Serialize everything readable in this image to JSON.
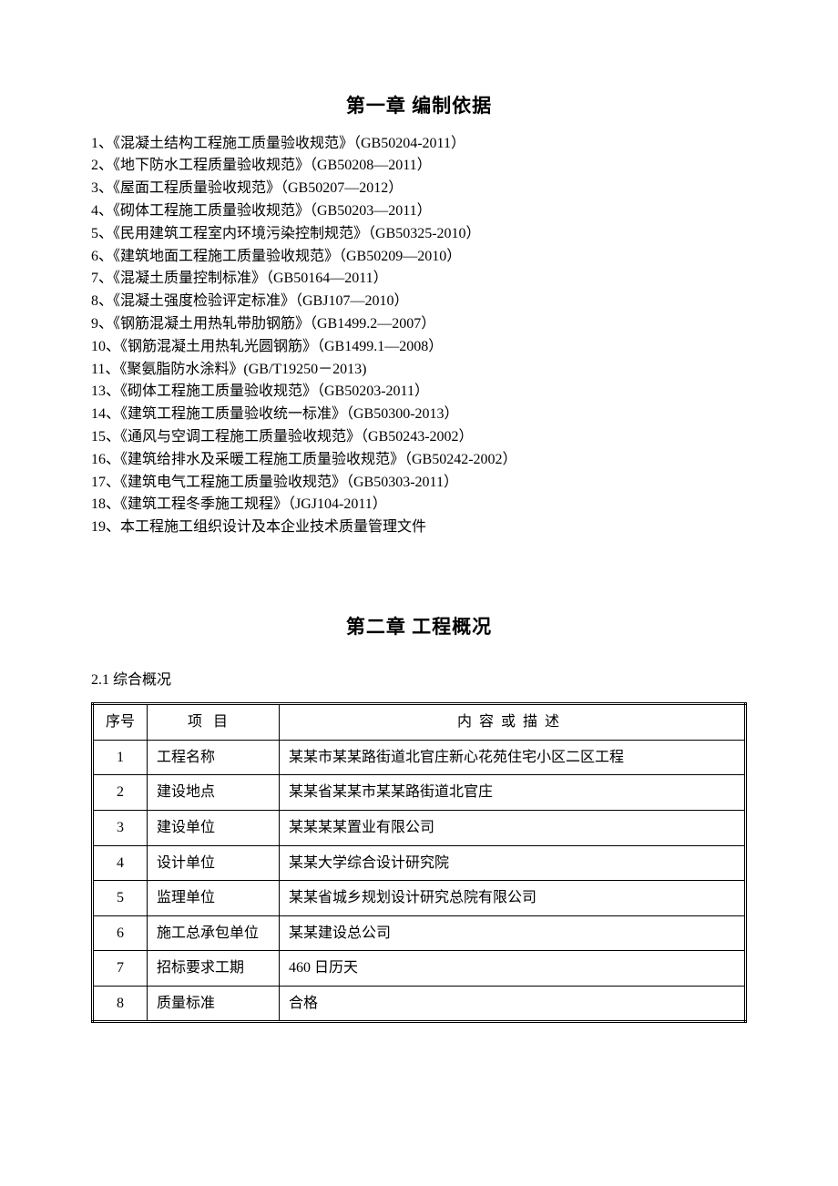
{
  "chapter1": {
    "title": "第一章 编制依据",
    "references": [
      "1、《混凝土结构工程施工质量验收规范》（GB50204-2011）",
      "2、《地下防水工程质量验收规范》（GB50208—2011）",
      "3、《屋面工程质量验收规范》（GB50207—2012）",
      "4、《砌体工程施工质量验收规范》（GB50203—2011）",
      "5、《民用建筑工程室内环境污染控制规范》（GB50325-2010）",
      "6、《建筑地面工程施工质量验收规范》（GB50209—2010）",
      "7、《混凝土质量控制标准》（GB50164—2011）",
      "8、《混凝土强度检验评定标准》（GBJ107—2010）",
      "9、《钢筋混凝土用热轧带肋钢筋》（GB1499.2—2007）",
      "10、《钢筋混凝土用热轧光圆钢筋》（GB1499.1—2008）",
      "11、《聚氨脂防水涂料》(GB/T19250－2013)",
      "13、《砌体工程施工质量验收规范》（GB50203-2011）",
      "14、《建筑工程施工质量验收统一标准》（GB50300-2013）",
      "15、《通风与空调工程施工质量验收规范》（GB50243-2002）",
      "16、《建筑给排水及采暖工程施工质量验收规范》（GB50242-2002）",
      "17、《建筑电气工程施工质量验收规范》（GB50303-2011）",
      "18、《建筑工程冬季施工规程》（JGJ104-2011）",
      "19、本工程施工组织设计及本企业技术质量管理文件"
    ]
  },
  "chapter2": {
    "title": "第二章 工程概况",
    "section_title": "2.1 综合概况",
    "table": {
      "headers": {
        "seq": "序号",
        "item": "项目",
        "desc": "内容或描述"
      },
      "rows": [
        {
          "seq": "1",
          "item": "工程名称",
          "desc": "某某市某某路街道北官庄新心花苑住宅小区二区工程"
        },
        {
          "seq": "2",
          "item": "建设地点",
          "desc": "某某省某某市某某路街道北官庄"
        },
        {
          "seq": "3",
          "item": "建设单位",
          "desc": "某某某某置业有限公司"
        },
        {
          "seq": "4",
          "item": "设计单位",
          "desc": "某某大学综合设计研究院"
        },
        {
          "seq": "5",
          "item": "监理单位",
          "desc": "某某省城乡规划设计研究总院有限公司"
        },
        {
          "seq": "6",
          "item": "施工总承包单位",
          "desc": "某某建设总公司"
        },
        {
          "seq": "7",
          "item": "招标要求工期",
          "desc": "460 日历天"
        },
        {
          "seq": "8",
          "item": "质量标准",
          "desc": "合格"
        }
      ]
    }
  }
}
